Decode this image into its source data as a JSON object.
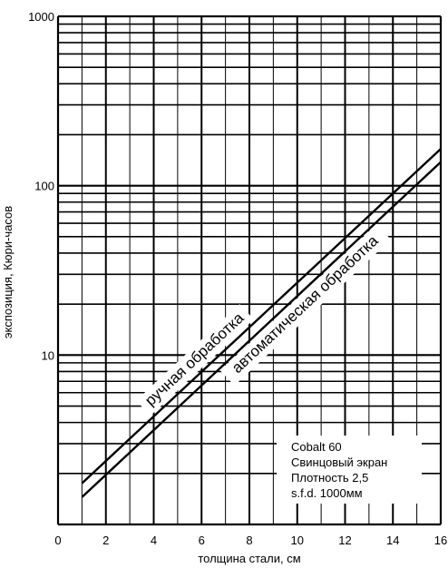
{
  "chart_data": {
    "type": "line",
    "title": "",
    "xlabel": "толщина стали, см",
    "ylabel": "экспозиция, Кюри-часов",
    "xlim": [
      0,
      16
    ],
    "ylim": [
      1,
      1000
    ],
    "y_scale": "log",
    "grid": true,
    "x_ticks": [
      "0",
      "2",
      "4",
      "6",
      "8",
      "10",
      "12",
      "14",
      "16"
    ],
    "y_ticks": [
      "10",
      "100",
      "1000"
    ],
    "series": [
      {
        "name": "ручная обработка",
        "x": [
          1,
          16
        ],
        "y": [
          1.75,
          165
        ]
      },
      {
        "name": "автоматическая обработка",
        "x": [
          1,
          16
        ],
        "y": [
          1.45,
          138
        ]
      }
    ],
    "info_box": [
      "Cobalt  60",
      "Свинцовый экран",
      "Плотность 2,5",
      "s.f.d. 1000мм"
    ]
  }
}
